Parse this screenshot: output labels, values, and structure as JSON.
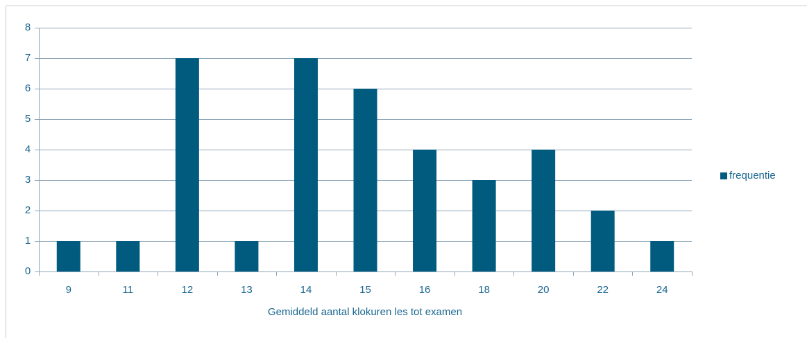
{
  "chart_data": {
    "type": "bar",
    "x_label": "Gemiddeld aantal klokuren les tot examen",
    "categories": [
      "9",
      "11",
      "12",
      "13",
      "14",
      "15",
      "16",
      "18",
      "20",
      "22",
      "24"
    ],
    "series": [
      {
        "name": "frequentie",
        "color": "#005b7f",
        "values": [
          1,
          1,
          7,
          1,
          7,
          6,
          4,
          3,
          4,
          2,
          1
        ]
      }
    ],
    "ylim": [
      0,
      8
    ],
    "yticks": [
      0,
      1,
      2,
      3,
      4,
      5,
      6,
      7,
      8
    ],
    "grid": true,
    "legend": "right"
  }
}
